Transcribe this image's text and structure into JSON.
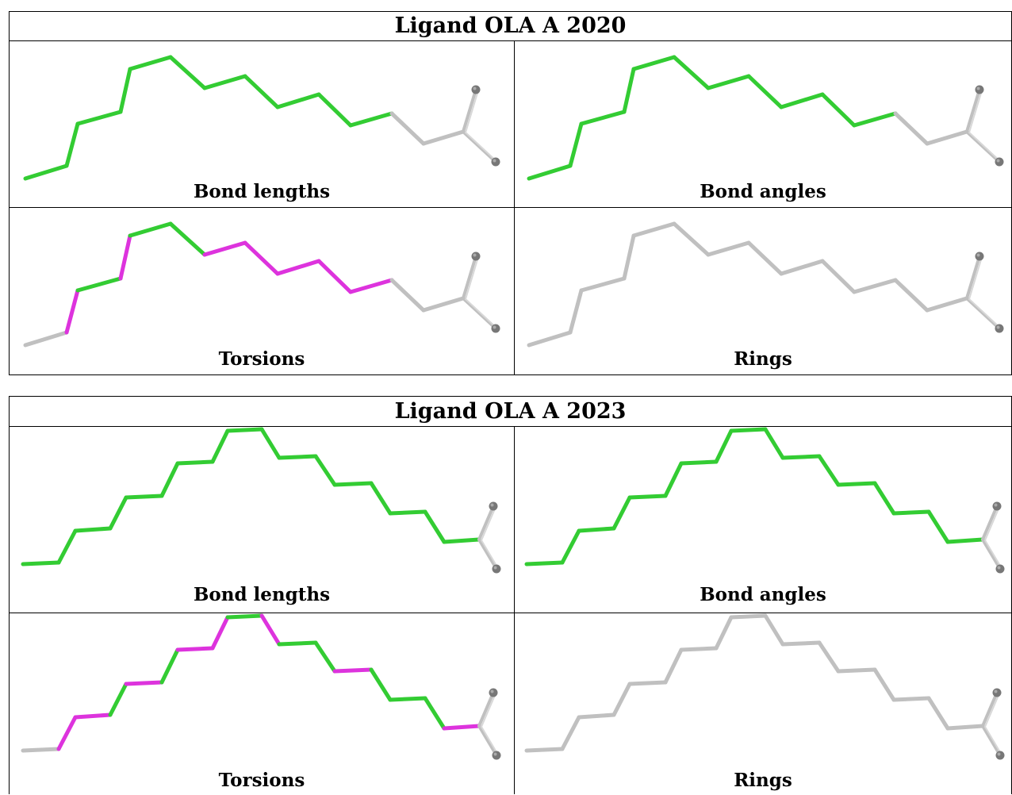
{
  "tables": [
    {
      "title": "Ligand OLA A 2020",
      "panels": [
        {
          "label": "Bond lengths",
          "colors": [
            "green",
            "green",
            "green",
            "green",
            "green",
            "green",
            "green",
            "green",
            "green",
            "green",
            "green",
            "gray",
            "gray",
            "gray"
          ]
        },
        {
          "label": "Bond angles",
          "colors": [
            "green",
            "green",
            "green",
            "green",
            "green",
            "green",
            "green",
            "green",
            "green",
            "green",
            "green",
            "gray",
            "gray",
            "gray"
          ]
        },
        {
          "label": "Torsions",
          "colors": [
            "gray",
            "magenta",
            "green",
            "magenta",
            "green",
            "green",
            "magenta",
            "magenta",
            "magenta",
            "magenta",
            "magenta",
            "gray",
            "gray",
            "gray"
          ]
        },
        {
          "label": "Rings",
          "colors": [
            "gray",
            "gray",
            "gray",
            "gray",
            "gray",
            "gray",
            "gray",
            "gray",
            "gray",
            "gray",
            "gray",
            "gray",
            "gray",
            "gray"
          ]
        }
      ]
    },
    {
      "title": "Ligand OLA A 2023",
      "panels": [
        {
          "label": "Bond lengths",
          "colors": [
            "green",
            "green",
            "green",
            "green",
            "green",
            "green",
            "green",
            "green",
            "green",
            "green",
            "green",
            "green",
            "green",
            "green",
            "green",
            "green",
            "green",
            "gray",
            "gray",
            "gray"
          ]
        },
        {
          "label": "Bond angles",
          "colors": [
            "green",
            "green",
            "green",
            "green",
            "green",
            "green",
            "green",
            "green",
            "green",
            "green",
            "green",
            "green",
            "green",
            "green",
            "green",
            "green",
            "green",
            "gray",
            "gray",
            "gray"
          ]
        },
        {
          "label": "Torsions",
          "colors": [
            "gray",
            "magenta",
            "magenta",
            "green",
            "magenta",
            "green",
            "magenta",
            "magenta",
            "green",
            "magenta",
            "green",
            "green",
            "magenta",
            "green",
            "green",
            "green",
            "magenta",
            "gray",
            "gray",
            "gray"
          ]
        },
        {
          "label": "Rings",
          "colors": [
            "gray",
            "gray",
            "gray",
            "gray",
            "gray",
            "gray",
            "gray",
            "gray",
            "gray",
            "gray",
            "gray",
            "gray",
            "gray",
            "gray",
            "gray",
            "gray",
            "gray",
            "gray",
            "gray",
            "gray"
          ]
        }
      ]
    }
  ],
  "palette": {
    "green": "#33cc33",
    "magenta": "#dd33dd",
    "gray": "#c0c0c0",
    "atom": "#777777"
  }
}
